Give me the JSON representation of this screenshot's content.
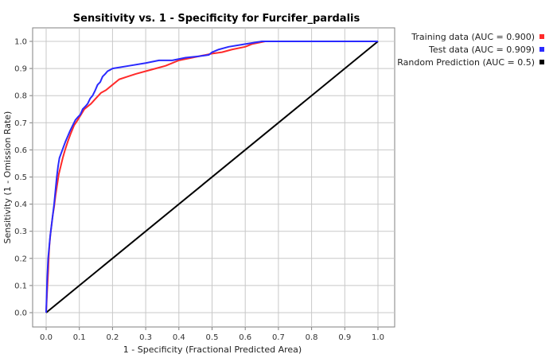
{
  "chart_data": {
    "type": "line",
    "title": "Sensitivity vs. 1 - Specificity for Furcifer_pardalis",
    "xlabel": "1 - Specificity  (Fractional Predicted Area)",
    "ylabel": "Sensitivity  (1 - Omission Rate)",
    "xlim": [
      0,
      1
    ],
    "ylim": [
      0,
      1
    ],
    "xticks": [
      0.0,
      0.1,
      0.2,
      0.3,
      0.4,
      0.5,
      0.6,
      0.7,
      0.8,
      0.9,
      1.0
    ],
    "xtick_labels": [
      "0.0",
      "0.1",
      "0.2",
      "0.3",
      "0.4",
      "0.5",
      "0.6",
      "0.7",
      "0.8",
      "0.9",
      "1.0"
    ],
    "yticks": [
      0.0,
      0.1,
      0.2,
      0.3,
      0.4,
      0.5,
      0.6,
      0.7,
      0.8,
      0.9,
      1.0
    ],
    "ytick_labels": [
      "0.0",
      "0.1",
      "0.2",
      "0.3",
      "0.4",
      "0.5",
      "0.6",
      "0.7",
      "0.8",
      "0.9",
      "1.0"
    ],
    "grid": true,
    "legend_position": "top-right",
    "series": [
      {
        "name": "Training data (AUC = 0.900)",
        "color": "#ff2a2a",
        "x": [
          0,
          0.003,
          0.006,
          0.008,
          0.01,
          0.013,
          0.016,
          0.02,
          0.024,
          0.028,
          0.033,
          0.038,
          0.044,
          0.05,
          0.057,
          0.065,
          0.074,
          0.084,
          0.095,
          0.105,
          0.115,
          0.125,
          0.135,
          0.15,
          0.165,
          0.18,
          0.2,
          0.22,
          0.245,
          0.27,
          0.3,
          0.33,
          0.36,
          0.4,
          0.44,
          0.48,
          0.5,
          0.53,
          0.56,
          0.6,
          0.62,
          0.66,
          0.7,
          1.0
        ],
        "y": [
          0,
          0.08,
          0.15,
          0.21,
          0.25,
          0.29,
          0.32,
          0.36,
          0.39,
          0.43,
          0.47,
          0.51,
          0.54,
          0.57,
          0.6,
          0.63,
          0.66,
          0.69,
          0.71,
          0.73,
          0.75,
          0.76,
          0.77,
          0.79,
          0.81,
          0.82,
          0.84,
          0.86,
          0.87,
          0.88,
          0.89,
          0.9,
          0.91,
          0.93,
          0.94,
          0.95,
          0.955,
          0.96,
          0.97,
          0.98,
          0.99,
          1.0,
          1.0,
          1.0
        ]
      },
      {
        "name": "Test data (AUC = 0.909)",
        "color": "#2a2aff",
        "x": [
          0,
          0.003,
          0.006,
          0.009,
          0.012,
          0.016,
          0.02,
          0.024,
          0.028,
          0.032,
          0.036,
          0.04,
          0.046,
          0.052,
          0.058,
          0.065,
          0.072,
          0.08,
          0.088,
          0.095,
          0.103,
          0.11,
          0.118,
          0.125,
          0.133,
          0.14,
          0.148,
          0.155,
          0.163,
          0.17,
          0.178,
          0.185,
          0.193,
          0.2,
          0.25,
          0.3,
          0.34,
          0.38,
          0.42,
          0.46,
          0.49,
          0.5,
          0.52,
          0.55,
          0.6,
          0.65,
          0.7,
          1.0
        ],
        "y": [
          0,
          0.12,
          0.2,
          0.24,
          0.28,
          0.32,
          0.36,
          0.4,
          0.45,
          0.5,
          0.54,
          0.57,
          0.59,
          0.61,
          0.63,
          0.65,
          0.67,
          0.69,
          0.71,
          0.72,
          0.73,
          0.75,
          0.76,
          0.77,
          0.79,
          0.8,
          0.82,
          0.84,
          0.85,
          0.87,
          0.88,
          0.89,
          0.895,
          0.9,
          0.91,
          0.92,
          0.93,
          0.93,
          0.94,
          0.945,
          0.95,
          0.96,
          0.97,
          0.98,
          0.99,
          1.0,
          1.0,
          1.0
        ]
      },
      {
        "name": "Random Prediction (AUC = 0.5)",
        "color": "#000000",
        "x": [
          0,
          1
        ],
        "y": [
          0,
          1
        ]
      }
    ]
  }
}
